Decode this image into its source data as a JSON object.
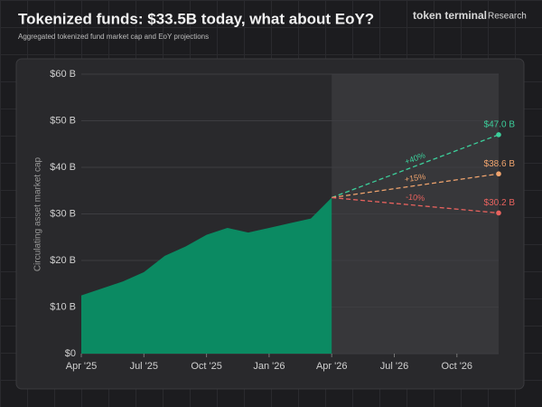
{
  "header": {
    "brand": "token terminal",
    "brand_suffix": "Research"
  },
  "chart_data": {
    "type": "area",
    "title": "Tokenized funds: $33.5B today, what about EoY?",
    "subtitle": "Aggregated tokenized fund market cap and EoY projections",
    "y_label": "Circulating asset market cap",
    "x": [
      "2025-04",
      "2025-05",
      "2025-06",
      "2025-07",
      "2025-08",
      "2025-09",
      "2025-10",
      "2025-11",
      "2025-12",
      "2026-01",
      "2026-02",
      "2026-03",
      "2026-04"
    ],
    "values": [
      12.5,
      14,
      15.5,
      17.5,
      21,
      23,
      25.5,
      27,
      26,
      27,
      28,
      29,
      33.5
    ],
    "color": "#0b8a62",
    "xlim": [
      "2025-04",
      "2026-12"
    ],
    "xticks": [
      {
        "value": "2025-04",
        "label": "Apr '25"
      },
      {
        "value": "2025-07",
        "label": "Jul '25"
      },
      {
        "value": "2025-10",
        "label": "Oct '25"
      },
      {
        "value": "2026-01",
        "label": "Jan '26"
      },
      {
        "value": "2026-04",
        "label": "Apr '26"
      },
      {
        "value": "2026-07",
        "label": "Jul '26"
      },
      {
        "value": "2026-10",
        "label": "Oct '26"
      }
    ],
    "ylim": [
      0,
      60
    ],
    "yticks": [
      {
        "value": 0,
        "label": "$0"
      },
      {
        "value": 10,
        "label": "$10 B"
      },
      {
        "value": 20,
        "label": "$20 B"
      },
      {
        "value": 30,
        "label": "$30 B"
      },
      {
        "value": 40,
        "label": "$40 B"
      },
      {
        "value": 50,
        "label": "$50 B"
      },
      {
        "value": 60,
        "label": "$60 B"
      }
    ],
    "grid": true,
    "projection_x": "2026-12",
    "projections": [
      {
        "change_label": "+40%",
        "value": 47.0,
        "value_label": "$47.0 B",
        "color": "#3ccf9b"
      },
      {
        "change_label": "+15%",
        "value": 38.6,
        "value_label": "$38.6 B",
        "color": "#f0a46e"
      },
      {
        "change_label": "-10%",
        "value": 30.2,
        "value_label": "$30.2 B",
        "color": "#e8625e"
      }
    ]
  }
}
